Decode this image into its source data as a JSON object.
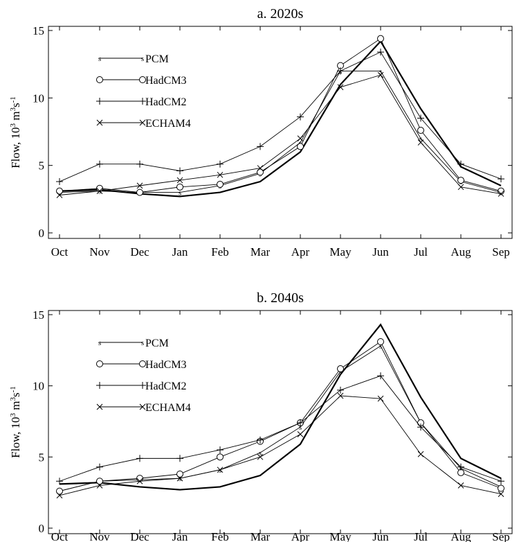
{
  "chart_data": [
    {
      "type": "line",
      "title": "a. 2020s",
      "xlabel": "",
      "ylabel_prefix": "Flow, 10",
      "ylabel_mid": " m",
      "ylabel_suffix": "s",
      "ylabel_sup1": "3",
      "ylabel_sup2": "3",
      "ylabel_sup3": "-1",
      "categories": [
        "Oct",
        "Nov",
        "Dec",
        "Jan",
        "Feb",
        "Mar",
        "Apr",
        "May",
        "Jun",
        "Jul",
        "Aug",
        "Sep"
      ],
      "ylim": [
        0,
        15
      ],
      "yticks": [
        "0",
        "5",
        "10",
        "15"
      ],
      "grid": false,
      "legend_position": "top-left",
      "series": [
        {
          "name": "",
          "marker": "none",
          "values": [
            3.1,
            3.2,
            2.9,
            2.7,
            3.0,
            3.8,
            6.0,
            11.0,
            14.2,
            9.2,
            4.9,
            3.5
          ]
        },
        {
          "name": "PCM",
          "marker": "s",
          "values": [
            3.0,
            3.1,
            3.0,
            3.0,
            3.5,
            4.4,
            6.7,
            12.0,
            12.0,
            7.0,
            3.8,
            3.0
          ]
        },
        {
          "name": "HadCM3",
          "marker": "circle",
          "values": [
            3.1,
            3.3,
            3.0,
            3.4,
            3.6,
            4.5,
            6.4,
            12.4,
            14.4,
            7.6,
            3.9,
            3.1
          ]
        },
        {
          "name": "HadCM2",
          "marker": "plus",
          "values": [
            3.8,
            5.1,
            5.1,
            4.6,
            5.1,
            6.4,
            8.6,
            12.0,
            13.4,
            8.5,
            5.1,
            4.0
          ]
        },
        {
          "name": "ECHAM4",
          "marker": "x",
          "values": [
            2.8,
            3.1,
            3.5,
            3.9,
            4.3,
            4.8,
            7.0,
            10.8,
            11.7,
            6.7,
            3.4,
            2.9
          ]
        }
      ]
    },
    {
      "type": "line",
      "title": "b. 2040s",
      "xlabel": "",
      "ylabel_prefix": "Flow, 10",
      "ylabel_mid": " m",
      "ylabel_suffix": "s",
      "ylabel_sup1": "3",
      "ylabel_sup2": "3",
      "ylabel_sup3": "-1",
      "categories": [
        "Oct",
        "Nov",
        "Dec",
        "Jan",
        "Feb",
        "Mar",
        "Apr",
        "May",
        "Jun",
        "Jul",
        "Aug",
        "Sep"
      ],
      "ylim": [
        0,
        15
      ],
      "yticks": [
        "0",
        "5",
        "10",
        "15"
      ],
      "grid": false,
      "legend_position": "top-left",
      "series": [
        {
          "name": "",
          "marker": "none",
          "values": [
            3.1,
            3.2,
            2.9,
            2.7,
            2.9,
            3.7,
            5.9,
            10.8,
            14.3,
            9.2,
            4.9,
            3.5
          ]
        },
        {
          "name": "PCM",
          "marker": "s",
          "values": [
            2.6,
            3.3,
            3.4,
            3.5,
            4.1,
            5.3,
            7.1,
            11.0,
            12.8,
            7.4,
            4.2,
            2.9
          ]
        },
        {
          "name": "HadCM3",
          "marker": "circle",
          "values": [
            2.6,
            3.3,
            3.5,
            3.8,
            5.0,
            6.1,
            7.4,
            11.2,
            13.1,
            7.4,
            3.9,
            2.8
          ]
        },
        {
          "name": "HadCM2",
          "marker": "plus",
          "values": [
            3.3,
            4.3,
            4.9,
            4.9,
            5.5,
            6.2,
            7.4,
            9.7,
            10.7,
            7.1,
            4.3,
            3.3
          ]
        },
        {
          "name": "ECHAM4",
          "marker": "x",
          "values": [
            2.3,
            3.0,
            3.3,
            3.5,
            4.1,
            5.0,
            6.6,
            9.3,
            9.1,
            5.2,
            3.0,
            2.4
          ]
        }
      ]
    }
  ]
}
